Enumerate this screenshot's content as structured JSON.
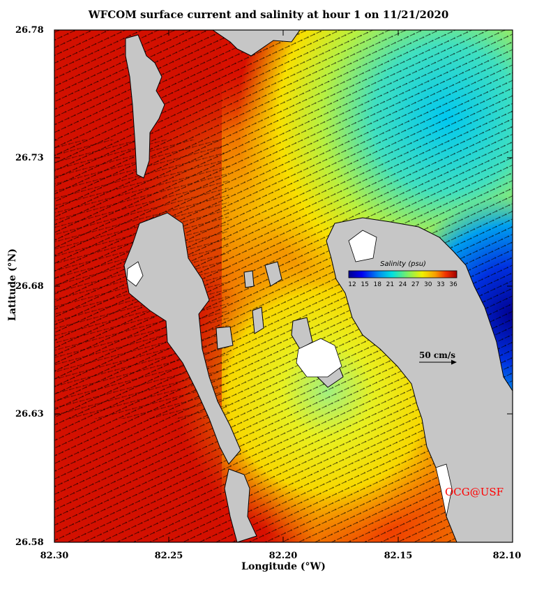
{
  "title": "WFCOM surface current and salinity at hour 1 on 11/21/2020",
  "axes": {
    "xlabel": "Longitude (°W)",
    "ylabel": "Latitude (°N)",
    "xticks": [
      "82.30",
      "82.25",
      "82.20",
      "82.15",
      "82.10"
    ],
    "yticks": [
      "26.78",
      "26.73",
      "26.68",
      "26.63",
      "26.58"
    ],
    "xlim": [
      82.3,
      82.1
    ],
    "ylim": [
      26.58,
      26.78
    ]
  },
  "colorbar": {
    "title": "Salinity (psu)",
    "ticks": [
      "12",
      "15",
      "18",
      "21",
      "24",
      "27",
      "30",
      "33",
      "36"
    ],
    "range": [
      12,
      36
    ]
  },
  "scale_vector": {
    "label": "50 cm/s"
  },
  "credit": "OCG@USF",
  "colors": {
    "land": "#c6c6c6",
    "high_salinity": "#d40000",
    "low_salinity": "#000090",
    "credit": "#ff0000"
  }
}
